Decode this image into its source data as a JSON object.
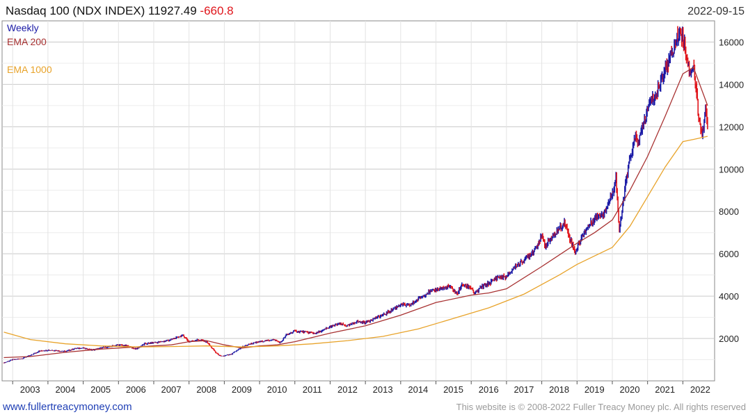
{
  "header": {
    "title": "Nasdaq 100 (NDX INDEX) 11927.49",
    "change": "-660.8",
    "date": "2022-09-15"
  },
  "legend": [
    {
      "label": "Weekly",
      "color": "#1a1aa6"
    },
    {
      "label": "EMA 200",
      "color": "#a83232"
    },
    {
      "label": "EMA 1000",
      "color": "#e8a32a"
    }
  ],
  "footer": {
    "link": "www.fullertreacymoney.com",
    "copyright": "This website is © 2008-2022 Fuller Treacy Money plc. All rights reserved"
  },
  "chart_data": {
    "type": "line",
    "x_ticks": [
      "2003",
      "2004",
      "2005",
      "2006",
      "2007",
      "2008",
      "2009",
      "2010",
      "2011",
      "2012",
      "2013",
      "2014",
      "2015",
      "2016",
      "2017",
      "2018",
      "2019",
      "2020",
      "2021",
      "2022"
    ],
    "y_ticks": [
      "2000",
      "4000",
      "6000",
      "8000",
      "10000",
      "12000",
      "14000",
      "16000"
    ],
    "ylim": [
      0,
      17000
    ],
    "xlim": [
      2002.7,
      2022.9
    ],
    "grid": true,
    "legend_position": "top-left",
    "colors": {
      "up": "#1a1aa6",
      "down": "#e0151b",
      "ema200": "#a83232",
      "ema1000": "#e8a32a"
    },
    "series": [
      {
        "name": "Weekly",
        "style": "price",
        "x": [
          2002.75,
          2003.0,
          2003.25,
          2003.5,
          2003.75,
          2004.0,
          2004.25,
          2004.5,
          2004.75,
          2005.0,
          2005.25,
          2005.5,
          2005.75,
          2006.0,
          2006.25,
          2006.5,
          2006.75,
          2007.0,
          2007.25,
          2007.5,
          2007.83,
          2008.0,
          2008.25,
          2008.5,
          2008.75,
          2008.9,
          2009.2,
          2009.5,
          2009.75,
          2010.0,
          2010.4,
          2010.6,
          2010.75,
          2011.0,
          2011.3,
          2011.6,
          2011.75,
          2012.0,
          2012.25,
          2012.5,
          2012.75,
          2013.0,
          2013.25,
          2013.5,
          2013.75,
          2014.0,
          2014.25,
          2014.5,
          2014.75,
          2015.0,
          2015.4,
          2015.6,
          2015.75,
          2016.0,
          2016.1,
          2016.3,
          2016.5,
          2016.75,
          2017.0,
          2017.25,
          2017.5,
          2017.75,
          2018.0,
          2018.1,
          2018.4,
          2018.65,
          2018.8,
          2018.95,
          2019.2,
          2019.5,
          2019.75,
          2020.0,
          2020.1,
          2020.2,
          2020.35,
          2020.5,
          2020.65,
          2020.75,
          2021.0,
          2021.1,
          2021.25,
          2021.5,
          2021.75,
          2021.9,
          2022.0,
          2022.2,
          2022.3,
          2022.45,
          2022.55,
          2022.65,
          2022.7
        ],
        "values": [
          850,
          1000,
          1050,
          1200,
          1400,
          1450,
          1430,
          1380,
          1520,
          1550,
          1450,
          1550,
          1620,
          1700,
          1650,
          1500,
          1750,
          1800,
          1850,
          1950,
          2150,
          1850,
          1950,
          1850,
          1350,
          1150,
          1250,
          1600,
          1750,
          1850,
          1950,
          1800,
          2150,
          2350,
          2300,
          2250,
          2350,
          2550,
          2700,
          2600,
          2800,
          2750,
          2950,
          3100,
          3350,
          3600,
          3550,
          3850,
          4150,
          4300,
          4450,
          4100,
          4550,
          4400,
          4100,
          4450,
          4600,
          4900,
          4900,
          5400,
          5700,
          6100,
          6800,
          6400,
          7000,
          7500,
          6700,
          6100,
          7000,
          7700,
          7900,
          8800,
          9700,
          7000,
          9000,
          10500,
          11500,
          11300,
          12800,
          13200,
          13500,
          14800,
          15700,
          16500,
          16300,
          14500,
          15000,
          12500,
          11500,
          12900,
          11927
        ]
      },
      {
        "name": "EMA 200",
        "style": "ema200",
        "x": [
          2002.75,
          2003.5,
          2004.5,
          2005.5,
          2006.5,
          2007.5,
          2008.0,
          2008.5,
          2009.0,
          2009.5,
          2010.0,
          2010.5,
          2011.0,
          2012.0,
          2013.0,
          2014.0,
          2015.0,
          2016.0,
          2016.5,
          2017.0,
          2018.0,
          2019.0,
          2019.5,
          2020.0,
          2020.5,
          2021.0,
          2021.5,
          2022.0,
          2022.3,
          2022.7
        ],
        "values": [
          1100,
          1150,
          1350,
          1500,
          1600,
          1700,
          1850,
          1900,
          1700,
          1550,
          1650,
          1700,
          1850,
          2250,
          2600,
          3100,
          3700,
          4050,
          4150,
          4350,
          5400,
          6500,
          7000,
          7600,
          9000,
          10600,
          12500,
          14500,
          14800,
          13000
        ]
      },
      {
        "name": "EMA 1000",
        "style": "ema1000",
        "x": [
          2002.75,
          2003.5,
          2004.5,
          2005.5,
          2006.5,
          2007.5,
          2008.5,
          2009.5,
          2010.5,
          2011.5,
          2012.5,
          2013.5,
          2014.5,
          2015.5,
          2016.5,
          2017.5,
          2018.5,
          2019.0,
          2019.5,
          2020.0,
          2020.5,
          2021.0,
          2021.5,
          2022.0,
          2022.3,
          2022.7
        ],
        "values": [
          2300,
          1950,
          1750,
          1650,
          1600,
          1620,
          1650,
          1600,
          1650,
          1750,
          1900,
          2100,
          2450,
          2950,
          3450,
          4100,
          5000,
          5500,
          5900,
          6300,
          7300,
          8700,
          10100,
          11300,
          11400,
          11550
        ]
      }
    ]
  }
}
